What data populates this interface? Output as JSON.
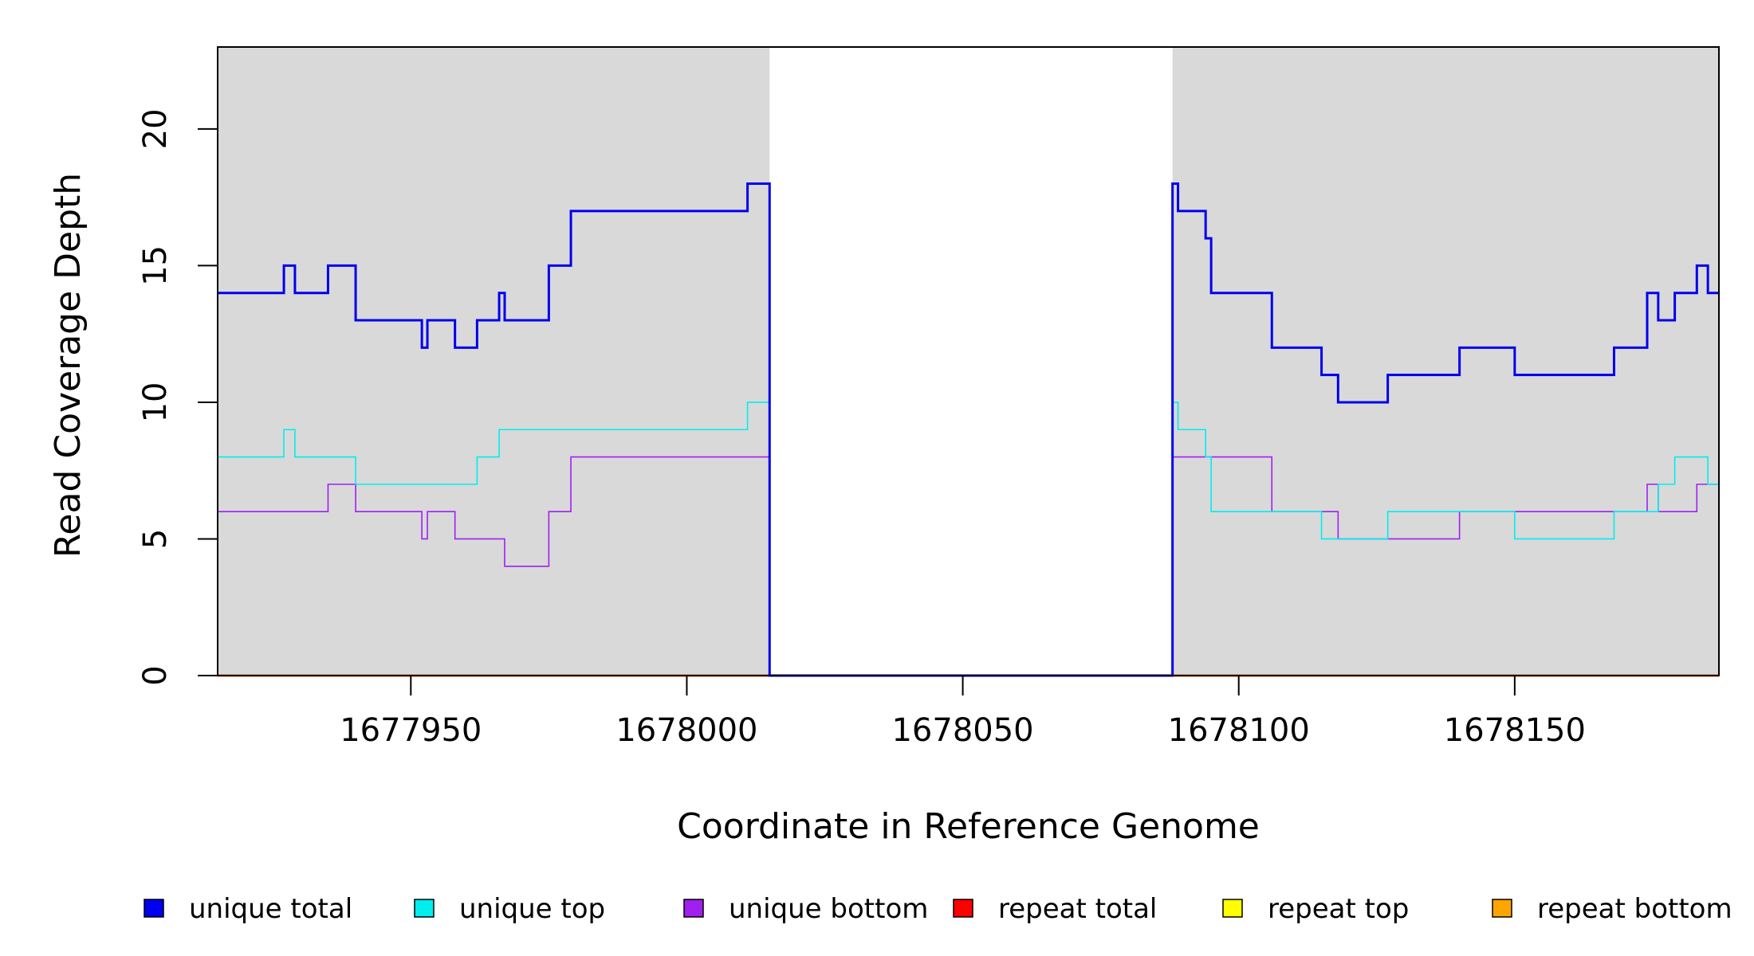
{
  "chart_data": {
    "type": "line",
    "title": "",
    "xlabel": "Coordinate in Reference Genome",
    "ylabel": "Read Coverage Depth",
    "xlim": [
      1677915,
      1678187
    ],
    "ylim": [
      0,
      23
    ],
    "x_ticks": [
      1677950,
      1678000,
      1678050,
      1678100,
      1678150
    ],
    "x_tick_labels": [
      "1677950",
      "1678000",
      "1678050",
      "1678100",
      "1678150"
    ],
    "y_ticks": [
      0,
      5,
      10,
      15,
      20
    ],
    "y_tick_labels": [
      "0",
      "5",
      "10",
      "15",
      "20"
    ],
    "shaded_regions": [
      {
        "x_start": 1677915,
        "x_end": 1678015,
        "color": "#d9d9d9"
      },
      {
        "x_start": 1678088,
        "x_end": 1678187,
        "color": "#d9d9d9"
      }
    ],
    "legend_position": "bottom",
    "series": [
      {
        "name": "unique total",
        "color": "#0000ee",
        "style": "step",
        "x": [
          1677915,
          1677927,
          1677929,
          1677935,
          1677940,
          1677952,
          1677953,
          1677958,
          1677962,
          1677966,
          1677967,
          1677975,
          1677979,
          1678011,
          1678015,
          1678088,
          1678089,
          1678094,
          1678095,
          1678106,
          1678115,
          1678118,
          1678127,
          1678140,
          1678150,
          1678168,
          1678174,
          1678176,
          1678179,
          1678183,
          1678185,
          1678187
        ],
        "y": [
          14,
          15,
          14,
          15,
          13,
          12,
          13,
          12,
          13,
          14,
          13,
          15,
          17,
          18,
          0,
          18,
          17,
          16,
          14,
          12,
          11,
          10,
          11,
          12,
          11,
          12,
          14,
          13,
          14,
          15,
          14,
          14
        ]
      },
      {
        "name": "unique top",
        "color": "#00eeee",
        "style": "step",
        "x": [
          1677915,
          1677927,
          1677929,
          1677940,
          1677962,
          1677966,
          1678011,
          1678015,
          1678088,
          1678089,
          1678094,
          1678095,
          1678115,
          1678127,
          1678150,
          1678168,
          1678176,
          1678179,
          1678185,
          1678187
        ],
        "y": [
          8,
          9,
          8,
          7,
          8,
          9,
          10,
          0,
          10,
          9,
          8,
          6,
          5,
          6,
          5,
          6,
          7,
          8,
          7,
          7
        ]
      },
      {
        "name": "unique bottom",
        "color": "#a020f0",
        "style": "step",
        "x": [
          1677915,
          1677935,
          1677940,
          1677952,
          1677953,
          1677958,
          1677967,
          1677975,
          1677979,
          1678015,
          1678088,
          1678106,
          1678118,
          1678140,
          1678174,
          1678176,
          1678183,
          1678187
        ],
        "y": [
          6,
          7,
          6,
          5,
          6,
          5,
          4,
          6,
          8,
          0,
          8,
          6,
          5,
          6,
          7,
          6,
          7,
          7
        ]
      },
      {
        "name": "repeat total",
        "color": "#ff0000",
        "style": "step",
        "x": [
          1677915,
          1678187
        ],
        "y": [
          0,
          0
        ]
      },
      {
        "name": "repeat top",
        "color": "#ffff00",
        "style": "step",
        "x": [
          1677915,
          1678187
        ],
        "y": [
          0,
          0
        ]
      },
      {
        "name": "repeat bottom",
        "color": "#ffa500",
        "style": "step",
        "x": [
          1677915,
          1678187
        ],
        "y": [
          0,
          0
        ]
      }
    ]
  }
}
